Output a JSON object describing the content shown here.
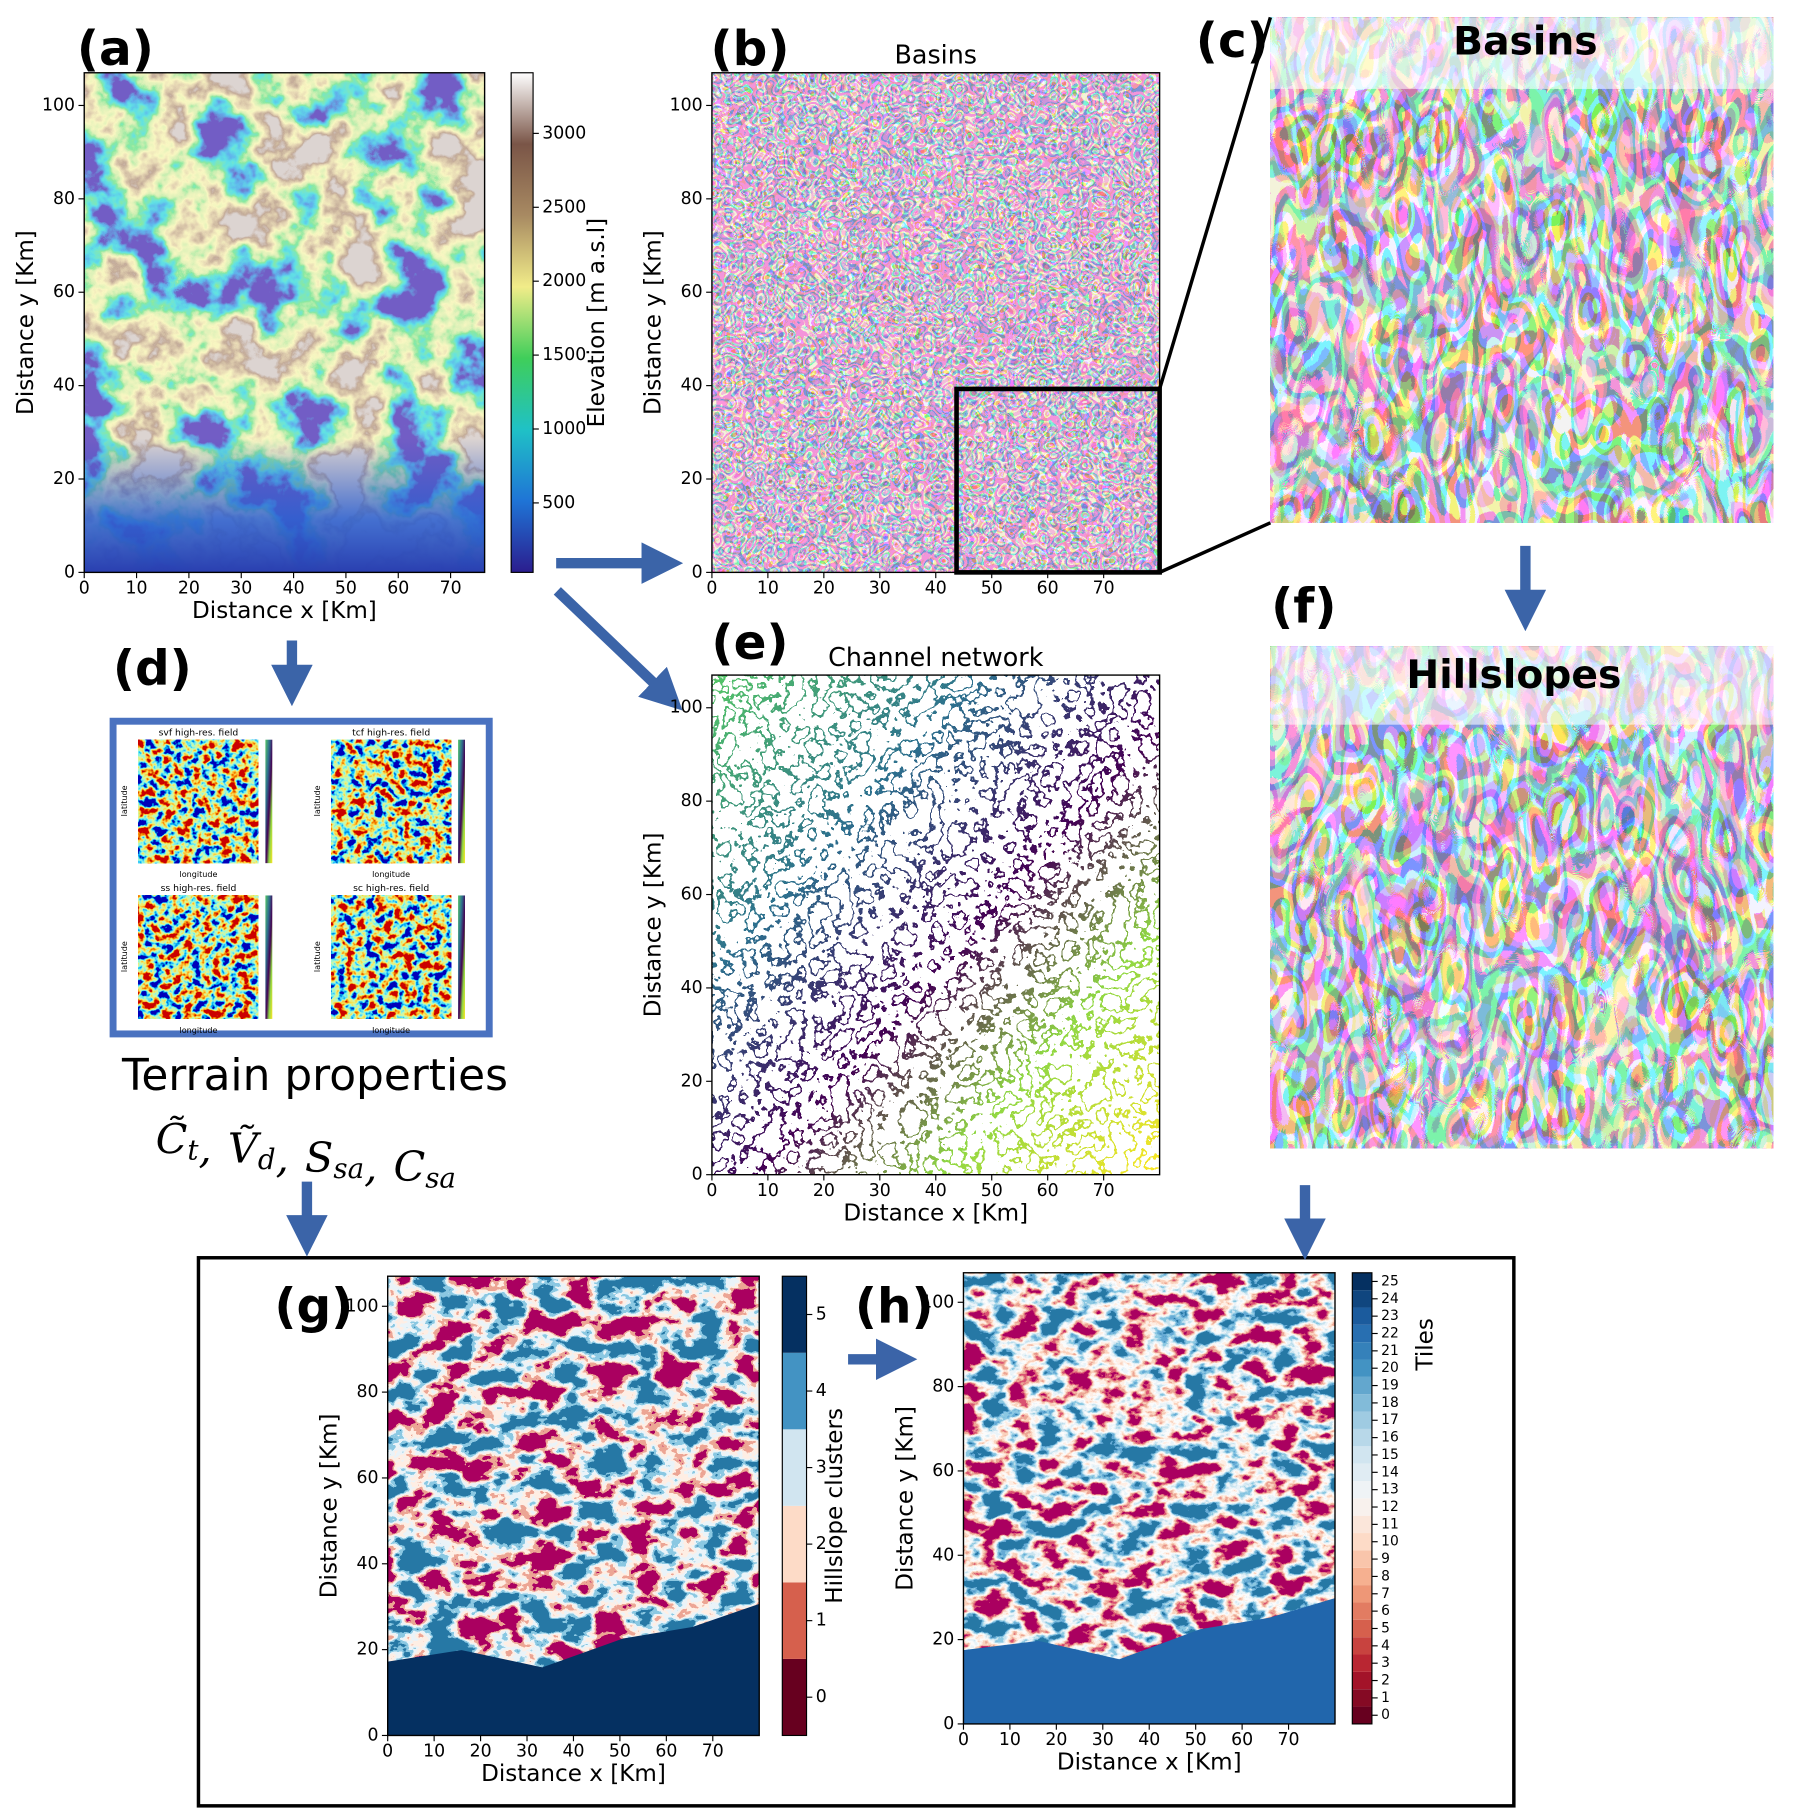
{
  "chart_data": [
    {
      "type": "raster",
      "panel": "(a)",
      "xlabel": "Distance x [Km]",
      "ylabel": "Distance y [Km]",
      "xlim": [
        0,
        76.5
      ],
      "ylim": [
        0,
        107
      ],
      "xticks": [
        0,
        10,
        20,
        30,
        40,
        50,
        60,
        70
      ],
      "yticks": [
        0,
        20,
        40,
        60,
        80,
        100
      ],
      "colorbar": {
        "label": "Elevation [m a.s.l]",
        "lim": [
          30,
          3410
        ],
        "ticks": [
          500,
          1000,
          1500,
          2000,
          2500,
          3000
        ],
        "discrete": false,
        "colors": [
          "#2b1d8e",
          "#1f74d6",
          "#1fc1c6",
          "#3fce5a",
          "#f1ec89",
          "#a88a62",
          "#7a5547",
          "#ffffff"
        ]
      }
    },
    {
      "type": "raster",
      "panel": "(b)",
      "title": "Basins",
      "ylabel": "Distance y [Km]",
      "xlim": [
        0,
        80
      ],
      "ylim": [
        0,
        107
      ],
      "xticks": [
        0,
        10,
        20,
        30,
        40,
        50,
        60,
        70
      ],
      "yticks": [
        0,
        20,
        40,
        60,
        80,
        100
      ]
    },
    {
      "type": "raster",
      "panel": "(e)",
      "title": "Channel network",
      "xlabel": "Distance x [Km]",
      "ylabel": "Distance y [Km]",
      "xlim": [
        0,
        80
      ],
      "ylim": [
        0,
        107
      ],
      "xticks": [
        0,
        10,
        20,
        30,
        40,
        50,
        60,
        70
      ],
      "yticks": [
        0,
        20,
        40,
        60,
        80,
        100
      ]
    },
    {
      "type": "raster",
      "panel": "(g)",
      "xlabel": "Distance x [Km]",
      "ylabel": "Distance y [Km]",
      "xlim": [
        0,
        80
      ],
      "ylim": [
        0,
        107
      ],
      "xticks": [
        0,
        10,
        20,
        30,
        40,
        50,
        60,
        70
      ],
      "yticks": [
        0,
        20,
        40,
        60,
        80,
        100
      ],
      "colorbar": {
        "label": "Hillslope clusters",
        "lim": [
          -0.5,
          5.5
        ],
        "ticks": [
          0,
          1,
          2,
          3,
          4,
          5
        ],
        "discrete": true,
        "colors": [
          "#67001f",
          "#d6604d",
          "#fddbc7",
          "#d1e5f0",
          "#4393c3",
          "#053061"
        ]
      }
    },
    {
      "type": "raster",
      "panel": "(h)",
      "xlabel": "Distance x [Km]",
      "ylabel": "Distance y [Km]",
      "xlim": [
        0,
        80
      ],
      "ylim": [
        0,
        107
      ],
      "xticks": [
        0,
        10,
        20,
        30,
        40,
        50,
        60,
        70
      ],
      "yticks": [
        0,
        20,
        40,
        60,
        80,
        100
      ],
      "colorbar": {
        "label": "Tiles",
        "lim": [
          -0.5,
          25.5
        ],
        "ticks": [
          0,
          1,
          2,
          3,
          4,
          5,
          6,
          7,
          8,
          9,
          10,
          11,
          12,
          13,
          14,
          15,
          16,
          17,
          18,
          19,
          20,
          21,
          22,
          23,
          24,
          25
        ],
        "discrete": true,
        "colors": [
          "#67001f",
          "#b2182b",
          "#d6604d",
          "#f4a582",
          "#fddbc7",
          "#f7f7f7",
          "#d1e5f0",
          "#92c5de",
          "#4393c3",
          "#2166ac",
          "#053061"
        ]
      }
    }
  ],
  "zoom_panels": [
    {
      "panel": "(c)",
      "title": "Basins"
    },
    {
      "panel": "(f)",
      "title": "Hillslopes"
    }
  ],
  "terrain_properties": {
    "panel": "(d)",
    "caption": "Terrain properties",
    "subplots": [
      {
        "title": "svf high-res. field",
        "xlabel": "longitude",
        "ylabel": "latitude"
      },
      {
        "title": "tcf high-res. field",
        "xlabel": "longitude",
        "ylabel": "latitude"
      },
      {
        "title": "ss high-res. field",
        "xlabel": "longitude",
        "ylabel": "latitude"
      },
      {
        "title": "sc high-res. field",
        "xlabel": "longitude",
        "ylabel": "latitude"
      }
    ],
    "separator": ",",
    "symbols": [
      {
        "base": "C̃",
        "sub": "t"
      },
      {
        "base": "Ṽ",
        "sub": "d"
      },
      {
        "base": "S",
        "sub": "sa"
      },
      {
        "base": "C",
        "sub": "sa"
      }
    ]
  }
}
